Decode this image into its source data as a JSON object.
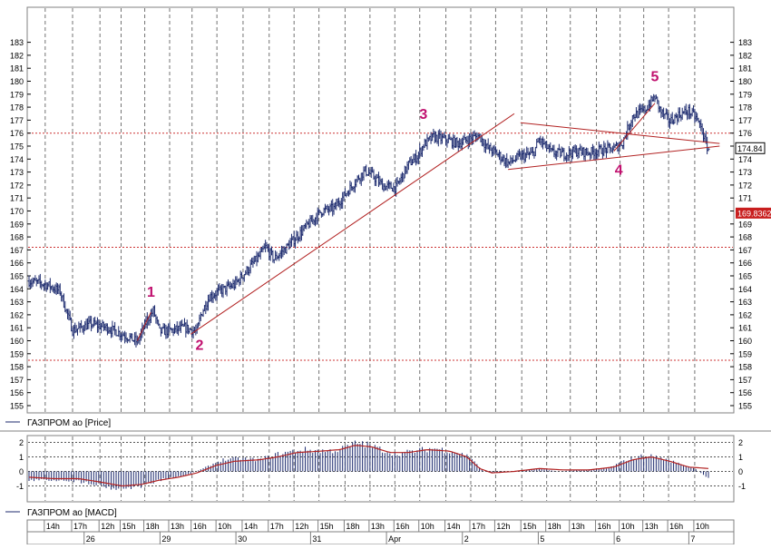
{
  "chart_data": [
    {
      "type": "candlestick",
      "series_label": "ГАЗПРОМ ао [Price]",
      "ylim": [
        155,
        183
      ],
      "y_ticks": [
        155,
        156,
        157,
        158,
        159,
        160,
        161,
        162,
        163,
        164,
        165,
        166,
        167,
        168,
        169,
        170,
        171,
        172,
        173,
        174,
        175,
        176,
        177,
        178,
        179,
        180,
        181,
        182,
        183
      ],
      "grid": true,
      "current_price": "174.84",
      "marker_price": "169.83625",
      "horizontal_levels": [
        {
          "value": 176.0,
          "color": "#cc3333"
        },
        {
          "value": 167.2,
          "color": "#cc3333"
        },
        {
          "value": 158.5,
          "color": "#cc3333"
        }
      ],
      "close_path": [
        [
          0,
          164.6
        ],
        [
          15,
          164.3
        ],
        [
          25,
          163.8
        ],
        [
          35,
          160.8
        ],
        [
          50,
          161.3
        ],
        [
          63,
          161.0
        ],
        [
          80,
          160.3
        ],
        [
          87,
          159.9
        ],
        [
          95,
          161.6
        ],
        [
          100,
          162.3
        ],
        [
          105,
          160.7
        ],
        [
          115,
          160.8
        ],
        [
          125,
          161.0
        ],
        [
          135,
          160.7
        ],
        [
          138,
          162.0
        ],
        [
          145,
          163.4
        ],
        [
          155,
          163.9
        ],
        [
          165,
          164.3
        ],
        [
          175,
          165.4
        ],
        [
          185,
          166.5
        ],
        [
          190,
          167.2
        ],
        [
          197,
          166.3
        ],
        [
          205,
          167.0
        ],
        [
          215,
          168.0
        ],
        [
          225,
          169.0
        ],
        [
          235,
          170.0
        ],
        [
          245,
          170.2
        ],
        [
          255,
          171.4
        ],
        [
          265,
          172.6
        ],
        [
          270,
          173.1
        ],
        [
          275,
          172.8
        ],
        [
          285,
          171.9
        ],
        [
          295,
          171.8
        ],
        [
          305,
          173.6
        ],
        [
          312,
          174.2
        ],
        [
          317,
          175.1
        ],
        [
          325,
          175.7
        ],
        [
          335,
          175.5
        ],
        [
          345,
          175.2
        ],
        [
          355,
          175.6
        ],
        [
          362,
          175.8
        ],
        [
          368,
          174.9
        ],
        [
          375,
          174.5
        ],
        [
          385,
          173.7
        ],
        [
          395,
          174.2
        ],
        [
          405,
          174.4
        ],
        [
          410,
          175.5
        ],
        [
          420,
          174.5
        ],
        [
          430,
          174.4
        ],
        [
          440,
          174.6
        ],
        [
          450,
          174.5
        ],
        [
          460,
          174.7
        ],
        [
          470,
          174.8
        ],
        [
          477,
          175.3
        ],
        [
          485,
          177.3
        ],
        [
          495,
          177.8
        ],
        [
          503,
          178.8
        ],
        [
          508,
          177.6
        ],
        [
          515,
          176.9
        ],
        [
          522,
          177.4
        ],
        [
          530,
          177.7
        ],
        [
          536,
          177.2
        ],
        [
          541,
          176.2
        ],
        [
          544,
          175.1
        ],
        [
          546,
          174.8
        ]
      ],
      "wave_labels": [
        {
          "text": "1",
          "bar": 98,
          "price": 163.4
        },
        {
          "text": "2",
          "bar": 137,
          "price": 159.3
        },
        {
          "text": "3",
          "bar": 317,
          "price": 177.1
        },
        {
          "text": "4",
          "bar": 474,
          "price": 172.8
        },
        {
          "text": "5",
          "bar": 503,
          "price": 180.0
        }
      ],
      "trendlines": [
        {
          "from": [
            130,
            160.5
          ],
          "to": [
            390,
            177.5
          ]
        },
        {
          "from": [
            385,
            173.2
          ],
          "to": [
            555,
            175.0
          ]
        },
        {
          "from": [
            395,
            176.8
          ],
          "to": [
            555,
            175.2
          ]
        },
        {
          "from": [
            470,
            174.6
          ],
          "to": [
            503,
            178.3
          ]
        },
        {
          "from": [
            87,
            160.0
          ],
          "to": [
            98,
            162.2
          ]
        }
      ],
      "line_color": "#1c2a6e",
      "trend_color": "#b22222",
      "label_color": "#c0106e"
    },
    {
      "type": "bar",
      "series_label": "ГАЗПРОМ ао [MACD]",
      "ylim": [
        -1.7,
        2.4
      ],
      "y_ticks": [
        -1,
        0,
        1,
        2
      ],
      "histogram_path": [
        [
          0,
          -0.6
        ],
        [
          30,
          -0.6
        ],
        [
          50,
          -0.8
        ],
        [
          70,
          -1.2
        ],
        [
          90,
          -1.0
        ],
        [
          110,
          -0.5
        ],
        [
          125,
          -0.3
        ],
        [
          140,
          0.2
        ],
        [
          155,
          0.8
        ],
        [
          170,
          0.9
        ],
        [
          185,
          0.8
        ],
        [
          200,
          1.2
        ],
        [
          220,
          1.5
        ],
        [
          240,
          1.4
        ],
        [
          250,
          1.5
        ],
        [
          265,
          2.0
        ],
        [
          280,
          1.6
        ],
        [
          295,
          1.2
        ],
        [
          310,
          1.4
        ],
        [
          325,
          1.6
        ],
        [
          340,
          1.4
        ],
        [
          355,
          1.0
        ],
        [
          365,
          0.0
        ],
        [
          375,
          -0.1
        ],
        [
          390,
          0.0
        ],
        [
          410,
          0.2
        ],
        [
          425,
          0.0
        ],
        [
          445,
          0.1
        ],
        [
          465,
          0.2
        ],
        [
          480,
          0.8
        ],
        [
          495,
          1.1
        ],
        [
          505,
          1.0
        ],
        [
          520,
          0.6
        ],
        [
          535,
          0.2
        ],
        [
          546,
          -0.5
        ]
      ],
      "signal_path": [
        [
          0,
          -0.4
        ],
        [
          20,
          -0.5
        ],
        [
          40,
          -0.5
        ],
        [
          55,
          -0.7
        ],
        [
          75,
          -1.0
        ],
        [
          90,
          -0.9
        ],
        [
          105,
          -0.6
        ],
        [
          120,
          -0.4
        ],
        [
          135,
          -0.1
        ],
        [
          150,
          0.4
        ],
        [
          165,
          0.7
        ],
        [
          185,
          0.8
        ],
        [
          200,
          1.0
        ],
        [
          215,
          1.3
        ],
        [
          235,
          1.4
        ],
        [
          250,
          1.5
        ],
        [
          262,
          1.8
        ],
        [
          275,
          1.7
        ],
        [
          290,
          1.3
        ],
        [
          305,
          1.3
        ],
        [
          320,
          1.5
        ],
        [
          338,
          1.4
        ],
        [
          352,
          1.0
        ],
        [
          362,
          0.2
        ],
        [
          372,
          -0.1
        ],
        [
          390,
          0.0
        ],
        [
          410,
          0.2
        ],
        [
          430,
          0.1
        ],
        [
          450,
          0.1
        ],
        [
          470,
          0.3
        ],
        [
          485,
          0.8
        ],
        [
          500,
          1.0
        ],
        [
          515,
          0.7
        ],
        [
          530,
          0.3
        ],
        [
          546,
          0.2
        ]
      ],
      "bar_color": "#1c2a6e",
      "signal_color": "#b22222"
    }
  ],
  "time_axis": {
    "bar_count": 547,
    "time_labels": [
      {
        "text": "14h",
        "bar": 13
      },
      {
        "text": "17h",
        "bar": 35
      },
      {
        "text": "12h",
        "bar": 57
      },
      {
        "text": "15h",
        "bar": 74
      },
      {
        "text": "18h",
        "bar": 93
      },
      {
        "text": "13h",
        "bar": 113
      },
      {
        "text": "16h",
        "bar": 131
      },
      {
        "text": "10h",
        "bar": 151
      },
      {
        "text": "14h",
        "bar": 172
      },
      {
        "text": "17h",
        "bar": 193
      },
      {
        "text": "12h",
        "bar": 213
      },
      {
        "text": "15h",
        "bar": 233
      },
      {
        "text": "18h",
        "bar": 254
      },
      {
        "text": "13h",
        "bar": 274
      },
      {
        "text": "16h",
        "bar": 294
      },
      {
        "text": "10h",
        "bar": 314
      },
      {
        "text": "14h",
        "bar": 335
      },
      {
        "text": "17h",
        "bar": 355
      },
      {
        "text": "12h",
        "bar": 375
      },
      {
        "text": "15h",
        "bar": 396
      },
      {
        "text": "18h",
        "bar": 416
      },
      {
        "text": "13h",
        "bar": 435
      },
      {
        "text": "16h",
        "bar": 456
      },
      {
        "text": "10h",
        "bar": 475
      },
      {
        "text": "13h",
        "bar": 494
      },
      {
        "text": "16h",
        "bar": 514
      },
      {
        "text": "10h",
        "bar": 535
      }
    ],
    "date_labels": [
      {
        "text": "26",
        "bar": 45
      },
      {
        "text": "29",
        "bar": 106
      },
      {
        "text": "30",
        "bar": 167
      },
      {
        "text": "31",
        "bar": 227
      },
      {
        "text": "Apr",
        "bar": 288
      },
      {
        "text": "2",
        "bar": 349
      },
      {
        "text": "5",
        "bar": 410
      },
      {
        "text": "6",
        "bar": 471
      },
      {
        "text": "7",
        "bar": 531
      }
    ]
  }
}
